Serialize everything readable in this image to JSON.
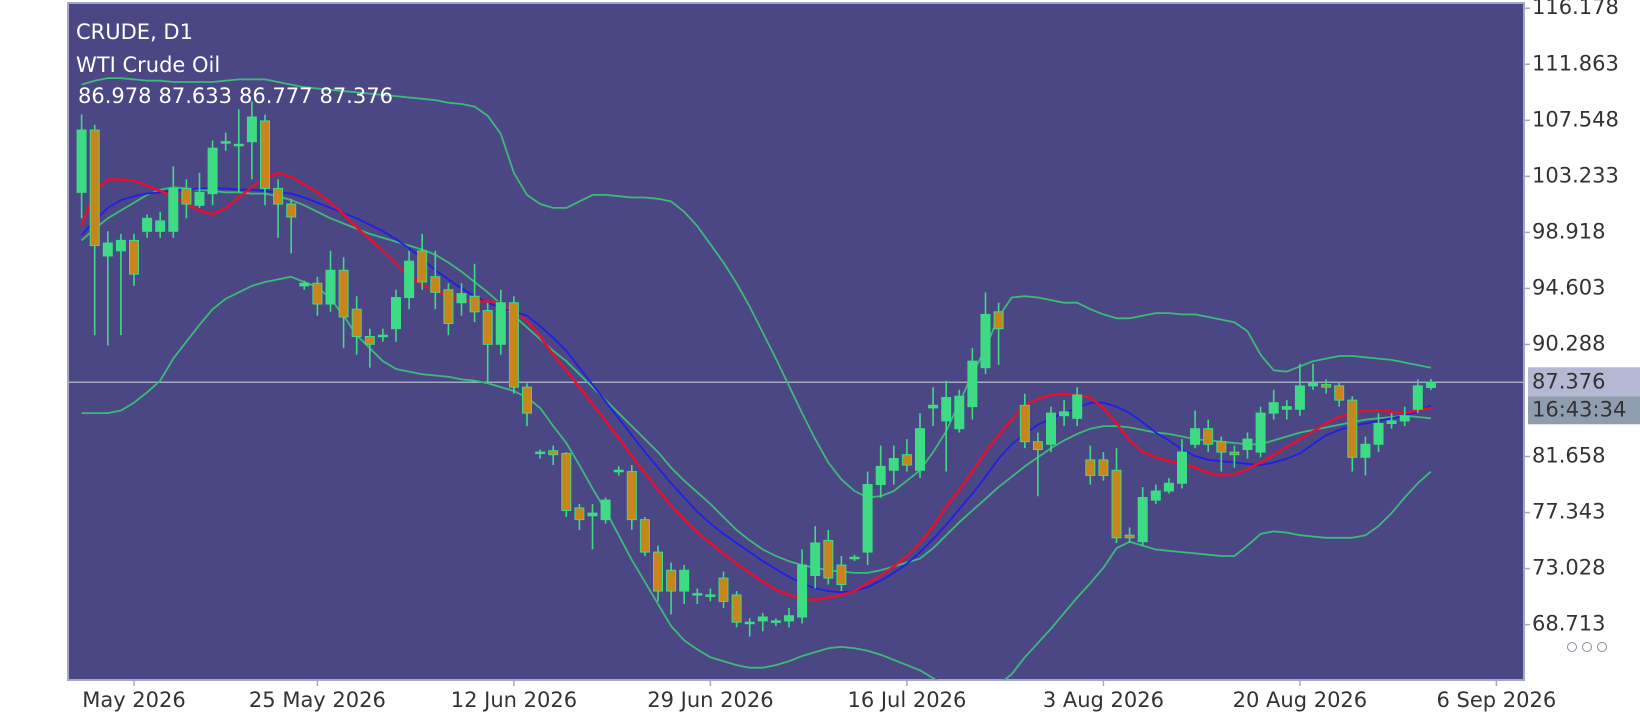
{
  "chart_data": {
    "type": "candlestick",
    "title": "CRUDE, D1",
    "subtitle": "WTI Crude Oil",
    "timer": "16:43:34",
    "categories": [
      null,
      null,
      null,
      null,
      "May 2026",
      null,
      null,
      null,
      null,
      null,
      null,
      null,
      null,
      null,
      null,
      null,
      null,
      null,
      "25 May 2026",
      null,
      null,
      null,
      null,
      null,
      null,
      null,
      null,
      null,
      null,
      null,
      null,
      null,
      null,
      "12 Jun 2026",
      null,
      null,
      null,
      null,
      null,
      null,
      null,
      null,
      null,
      null,
      null,
      null,
      null,
      null,
      "29 Jun 2026",
      null,
      null,
      null,
      null,
      null,
      null,
      null,
      null,
      null,
      null,
      null,
      null,
      null,
      null,
      "16 Jul 2026",
      null,
      null,
      null,
      null,
      null,
      null,
      null,
      null,
      null,
      null,
      null,
      null,
      null,
      null,
      "3 Aug 2026",
      null,
      null,
      null,
      null,
      null,
      null,
      null,
      null,
      null,
      null,
      null,
      null,
      null,
      null,
      "20 Aug 2026",
      null,
      null,
      null,
      null,
      null,
      null,
      null,
      null,
      null,
      null,
      null,
      null,
      null,
      null,
      "6 Sep 2026"
    ],
    "open": [
      102.0,
      106.8,
      97.1,
      97.5,
      98.3,
      99.0,
      99.0,
      99.0,
      102.3,
      101.0,
      101.9,
      105.8,
      105.6,
      105.9,
      107.5,
      102.3,
      101.1,
      94.8,
      95.0,
      93.4,
      96.0,
      93.0,
      90.9,
      90.9,
      91.5,
      93.9,
      97.5,
      95.5,
      94.5,
      93.5,
      94.0,
      92.9,
      90.3,
      93.5,
      87.0,
      81.9,
      82.1,
      81.9,
      77.7,
      77.1,
      76.8,
      80.5,
      80.5,
      76.8,
      74.3,
      72.9,
      71.3,
      71.0,
      70.9,
      72.3,
      71.0,
      68.8,
      69.0,
      68.9,
      69.0,
      69.3,
      72.5,
      75.2,
      73.3,
      73.8,
      74.3,
      79.5,
      80.6,
      81.8,
      80.6,
      85.4,
      84.4,
      83.8,
      85.5,
      88.5,
      92.8,
      null,
      85.6,
      82.8,
      82.6,
      84.8,
      84.6,
      81.4,
      81.4,
      80.6,
      75.6,
      75.1,
      78.3,
      79.0,
      79.6,
      82.6,
      83.8,
      82.8,
      82.0,
      82.2,
      82.0,
      85.0,
      85.3,
      85.3,
      87.1,
      87.2,
      87.1,
      86.0,
      81.6,
      82.6,
      84.2,
      84.4,
      85.3,
      86.978,
      null,
      null,
      null,
      null,
      null
    ],
    "high": [
      108.0,
      107.2,
      99.0,
      98.8,
      98.8,
      100.3,
      100.5,
      104.0,
      103.0,
      103.5,
      106.0,
      106.6,
      108.4,
      109.0,
      108.0,
      103.0,
      101.5,
      95.2,
      95.5,
      97.5,
      97.0,
      94.0,
      91.5,
      91.5,
      94.5,
      97.5,
      98.8,
      97.5,
      95.0,
      95.0,
      96.5,
      93.5,
      94.5,
      94.0,
      87.3,
      82.2,
      82.5,
      82.0,
      78.0,
      78.0,
      78.5,
      80.9,
      81.0,
      77.0,
      74.8,
      73.5,
      73.3,
      71.5,
      71.5,
      72.8,
      71.3,
      69.2,
      69.6,
      69.2,
      70.0,
      74.5,
      76.3,
      76.0,
      74.0,
      74.1,
      80.5,
      82.5,
      82.5,
      83.0,
      85.0,
      87.0,
      87.5,
      86.8,
      90.0,
      94.3,
      93.5,
      null,
      86.5,
      83.5,
      85.5,
      86.0,
      87.0,
      82.5,
      82.0,
      82.3,
      76.2,
      79.3,
      79.5,
      80.0,
      83.0,
      85.2,
      84.5,
      83.2,
      82.5,
      83.5,
      85.5,
      86.8,
      86.0,
      88.8,
      88.8,
      87.6,
      87.4,
      86.3,
      83.2,
      85.0,
      85.0,
      85.5,
      87.6,
      87.633,
      null,
      null,
      null,
      null,
      null
    ],
    "low": [
      100.0,
      91.0,
      90.2,
      91.0,
      94.8,
      98.5,
      98.5,
      98.5,
      100.0,
      100.8,
      101.0,
      105.2,
      102.0,
      103.0,
      101.0,
      98.5,
      97.3,
      94.5,
      92.5,
      92.8,
      90.0,
      89.5,
      88.5,
      90.5,
      90.5,
      93.0,
      94.5,
      93.0,
      91.0,
      92.5,
      92.0,
      87.3,
      89.5,
      86.5,
      84.0,
      81.5,
      81.0,
      77.0,
      76.0,
      74.5,
      76.5,
      80.2,
      76.0,
      74.0,
      70.5,
      69.5,
      70.3,
      70.3,
      70.5,
      70.0,
      68.5,
      67.8,
      68.2,
      68.6,
      68.5,
      68.8,
      71.5,
      71.8,
      71.3,
      73.6,
      73.3,
      78.5,
      79.5,
      80.5,
      80.0,
      84.0,
      80.5,
      83.5,
      84.5,
      88.0,
      88.7,
      null,
      82.3,
      78.6,
      82.0,
      84.0,
      84.0,
      79.5,
      79.8,
      75.0,
      75.0,
      74.8,
      78.0,
      78.8,
      79.2,
      82.3,
      82.0,
      80.5,
      80.8,
      81.5,
      81.6,
      84.5,
      84.5,
      84.8,
      86.8,
      86.5,
      85.5,
      80.5,
      80.2,
      82.0,
      83.8,
      84.0,
      85.0,
      86.777,
      null,
      null,
      null,
      null,
      null
    ],
    "close": [
      106.8,
      97.9,
      98.1,
      98.3,
      95.7,
      100.0,
      99.8,
      102.3,
      101.1,
      102.0,
      105.4,
      105.9,
      105.7,
      107.8,
      102.3,
      101.1,
      100.1,
      95.0,
      93.4,
      96.0,
      92.4,
      90.9,
      90.3,
      91.0,
      93.9,
      96.7,
      95.1,
      94.3,
      91.9,
      94.2,
      92.8,
      90.3,
      93.5,
      87.0,
      85.0,
      82.0,
      81.8,
      77.5,
      76.8,
      77.3,
      78.3,
      80.6,
      76.8,
      74.3,
      71.3,
      71.3,
      72.9,
      71.1,
      71.0,
      70.5,
      68.9,
      68.9,
      69.3,
      69.0,
      69.4,
      73.3,
      75.0,
      72.3,
      71.8,
      73.9,
      79.5,
      80.9,
      81.5,
      81.0,
      83.8,
      85.6,
      86.2,
      86.3,
      89.0,
      92.6,
      91.5,
      null,
      82.8,
      82.2,
      85.0,
      85.1,
      86.4,
      80.2,
      80.2,
      75.4,
      75.4,
      78.5,
      79.0,
      79.6,
      82.0,
      83.8,
      82.6,
      82.0,
      81.8,
      83.0,
      85.0,
      85.8,
      85.5,
      87.1,
      87.3,
      87.0,
      86.0,
      81.6,
      82.6,
      84.2,
      84.4,
      84.8,
      87.1,
      87.376,
      null,
      null,
      null,
      null,
      null
    ],
    "up_color": "#3ddc84",
    "down_color": "#c8861a",
    "wick_color": "#3ddc84",
    "lines": [
      {
        "color": "#3cba78",
        "values": [
          110.3,
          110.6,
          110.8,
          110.8,
          110.7,
          110.6,
          110.6,
          110.5,
          110.5,
          110.5,
          110.5,
          110.6,
          110.7,
          110.7,
          110.7,
          110.5,
          110.3,
          110.1,
          110.0,
          109.9,
          109.8,
          109.7,
          109.6,
          109.5,
          109.4,
          109.3,
          109.2,
          109.1,
          108.9,
          108.8,
          108.6,
          107.9,
          106.5,
          103.5,
          101.8,
          101.1,
          100.8,
          100.8,
          101.3,
          101.8,
          101.8,
          101.7,
          101.6,
          101.6,
          101.5,
          101.3,
          100.5,
          99.4,
          98.0,
          96.6,
          95.0,
          93.2,
          91.2,
          89.2,
          87.1,
          85.0,
          83.0,
          81.2,
          79.9,
          79.0,
          78.5,
          78.6,
          79.0,
          79.8,
          80.6,
          82.0,
          83.6,
          85.8,
          88.0,
          90.0,
          92.4,
          93.9,
          94.0,
          93.9,
          93.7,
          93.5,
          93.5,
          93.0,
          92.6,
          92.3,
          92.3,
          92.5,
          92.7,
          92.7,
          92.6,
          92.6,
          92.4,
          92.2,
          92.0,
          91.3,
          89.5,
          88.3,
          88.2,
          88.6,
          89.0,
          89.2,
          89.4,
          89.4,
          89.3,
          89.2,
          89.1,
          88.9,
          88.7,
          88.5,
          null,
          null,
          null,
          null,
          null
        ]
      },
      {
        "color": "#3cba78",
        "values": [
          85.0,
          85.0,
          85.0,
          85.2,
          85.8,
          86.6,
          87.5,
          89.2,
          90.5,
          91.8,
          93.0,
          93.8,
          94.3,
          94.8,
          95.1,
          95.3,
          95.5,
          95.1,
          94.7,
          93.8,
          92.5,
          91.0,
          90.0,
          89.0,
          88.4,
          88.2,
          88.0,
          87.9,
          87.8,
          87.6,
          87.5,
          87.3,
          87.0,
          86.7,
          86.2,
          85.4,
          84.0,
          82.7,
          81.0,
          79.2,
          77.5,
          75.6,
          73.7,
          72.0,
          70.3,
          68.6,
          67.5,
          66.8,
          66.2,
          65.9,
          65.6,
          65.4,
          65.4,
          65.6,
          65.9,
          66.3,
          66.6,
          66.9,
          67.0,
          66.9,
          66.7,
          66.4,
          66.0,
          65.6,
          65.2,
          64.6,
          64.0,
          63.6,
          63.5,
          63.6,
          64.1,
          64.9,
          66.2,
          67.3,
          68.4,
          69.6,
          70.8,
          71.9,
          73.1,
          74.6,
          75.1,
          74.8,
          74.5,
          74.4,
          74.3,
          74.2,
          74.1,
          74.0,
          74.0,
          74.8,
          75.7,
          75.9,
          75.8,
          75.6,
          75.5,
          75.4,
          75.4,
          75.4,
          75.6,
          76.3,
          77.3,
          78.5,
          79.6,
          80.5,
          null,
          null,
          null,
          null,
          null
        ]
      },
      {
        "color": "#3cba78",
        "values": [
          98.3,
          99.2,
          100.0,
          100.6,
          101.2,
          101.8,
          102.2,
          102.4,
          102.3,
          102.2,
          102.1,
          102.0,
          102.0,
          101.9,
          101.9,
          101.7,
          101.4,
          101.0,
          100.5,
          100.0,
          99.6,
          99.2,
          98.8,
          98.5,
          98.2,
          97.9,
          97.6,
          97.2,
          96.6,
          95.9,
          95.1,
          94.3,
          93.4,
          92.5,
          91.6,
          90.7,
          89.8,
          89.0,
          88.0,
          87.0,
          86.0,
          85.0,
          84.0,
          83.0,
          82.0,
          80.8,
          79.8,
          78.9,
          78.0,
          77.0,
          76.0,
          75.2,
          74.5,
          74.0,
          73.6,
          73.3,
          73.1,
          72.9,
          72.8,
          72.7,
          72.7,
          72.9,
          73.2,
          73.5,
          73.8,
          74.6,
          75.6,
          76.6,
          77.5,
          78.4,
          79.3,
          80.1,
          80.9,
          81.6,
          82.3,
          82.9,
          83.4,
          83.8,
          84.0,
          84.0,
          83.9,
          83.7,
          83.5,
          83.4,
          83.2,
          83.0,
          82.9,
          82.8,
          82.7,
          82.6,
          82.6,
          82.9,
          83.2,
          83.5,
          83.7,
          83.9,
          84.1,
          84.3,
          84.5,
          84.6,
          84.7,
          84.8,
          84.7,
          84.6,
          null,
          null,
          null,
          null,
          null
        ]
      },
      {
        "color": "#1f1fe8",
        "values": [
          98.7,
          99.8,
          100.8,
          101.4,
          101.7,
          101.9,
          102.0,
          102.1,
          102.2,
          102.3,
          102.3,
          102.3,
          102.2,
          102.2,
          102.1,
          102.0,
          101.9,
          101.6,
          101.2,
          100.8,
          100.4,
          100.0,
          99.5,
          99.0,
          98.4,
          97.7,
          96.9,
          96.0,
          95.3,
          94.6,
          94.0,
          93.5,
          93.1,
          92.8,
          92.5,
          91.7,
          90.8,
          89.8,
          88.5,
          87.2,
          85.9,
          84.6,
          83.3,
          82.0,
          80.8,
          79.6,
          78.5,
          77.4,
          76.5,
          75.7,
          75.0,
          74.3,
          73.6,
          73.0,
          72.4,
          71.9,
          71.5,
          71.3,
          71.2,
          71.3,
          71.6,
          72.1,
          72.7,
          73.4,
          74.3,
          75.3,
          76.4,
          77.6,
          78.8,
          80.1,
          81.5,
          82.6,
          83.4,
          84.1,
          84.6,
          85.0,
          85.4,
          85.8,
          85.8,
          85.5,
          85.0,
          84.3,
          83.5,
          82.9,
          82.2,
          81.7,
          81.4,
          81.3,
          81.2,
          81.1,
          81.0,
          81.2,
          81.5,
          81.9,
          82.6,
          83.3,
          83.7,
          84.0,
          84.2,
          84.4,
          84.6,
          84.8,
          85.1,
          85.6,
          null,
          null,
          null,
          null,
          null
        ]
      },
      {
        "color": "#e8102c",
        "values": [
          99.5,
          102.0,
          103.0,
          103.0,
          102.9,
          102.5,
          102.1,
          101.7,
          101.1,
          100.6,
          100.3,
          100.8,
          101.6,
          102.4,
          103.1,
          103.5,
          103.2,
          102.6,
          102.0,
          101.2,
          100.3,
          99.3,
          98.4,
          97.5,
          96.5,
          95.5,
          94.9,
          94.4,
          94.0,
          93.8,
          93.6,
          93.6,
          93.5,
          92.8,
          92.1,
          90.9,
          89.5,
          88.3,
          87.0,
          85.7,
          84.4,
          83.1,
          81.7,
          80.4,
          79.1,
          77.9,
          76.8,
          75.8,
          75.0,
          74.2,
          73.4,
          72.7,
          72.0,
          71.4,
          71.0,
          70.7,
          70.6,
          70.8,
          71.0,
          71.3,
          71.9,
          72.5,
          73.2,
          74.0,
          75.0,
          76.3,
          77.8,
          79.1,
          80.5,
          82.0,
          83.3,
          84.5,
          85.6,
          86.1,
          86.4,
          86.5,
          86.4,
          86.2,
          85.4,
          84.2,
          82.9,
          82.0,
          81.6,
          81.3,
          81.1,
          80.8,
          80.4,
          80.2,
          80.3,
          80.7,
          81.2,
          81.8,
          82.4,
          83.0,
          83.6,
          84.2,
          84.7,
          85.0,
          85.2,
          85.2,
          85.1,
          85.0,
          85.2,
          85.4,
          null,
          null,
          null,
          null,
          null
        ]
      }
    ],
    "ylim": [
      64.45,
      116.58
    ],
    "yticks": [
      116.178,
      111.863,
      107.548,
      103.233,
      98.918,
      94.603,
      90.288,
      81.658,
      77.343,
      73.028,
      68.713
    ],
    "grid": false
  }
}
